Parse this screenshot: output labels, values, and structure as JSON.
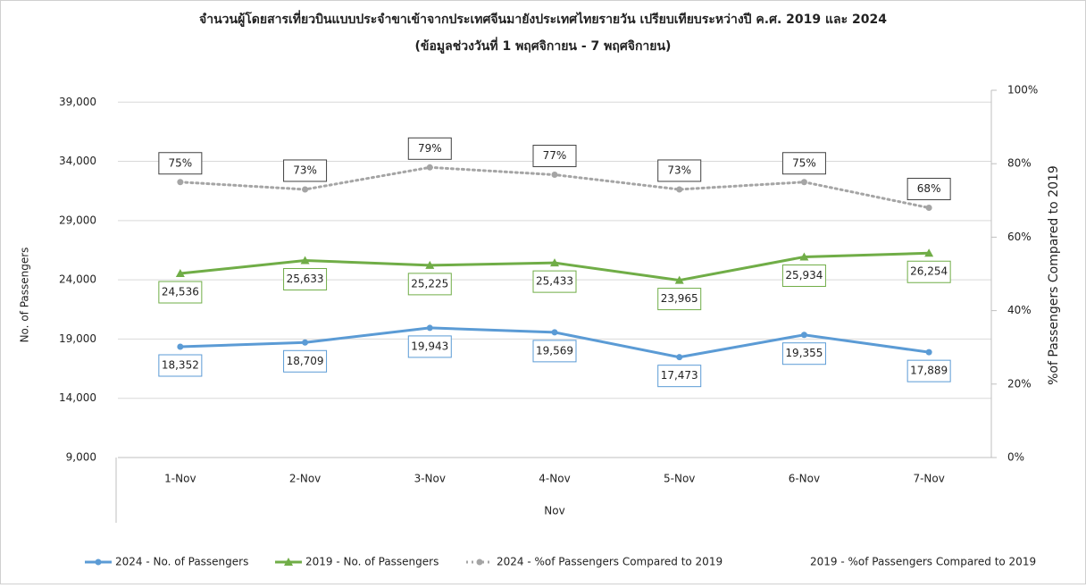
{
  "chart_data": {
    "type": "line",
    "title": "จำนวนผู้โดยสารเที่ยวบินแบบประจำขาเข้าจากประเทศจีนมายังประเทศไทยรายวัน เปรียบเทียบระหว่างปี ค.ศ. 2019 และ 2024",
    "subtitle": "(ข้อมูลช่วงวันที่ 1 พฤศจิกายน - 7 พฤศจิกายน)",
    "x_label": "Nov",
    "y_label": "No. of Passengers",
    "y2_label": "%of Passengers Compared to 2019",
    "categories": [
      "1-Nov",
      "2-Nov",
      "3-Nov",
      "4-Nov",
      "5-Nov",
      "6-Nov",
      "7-Nov"
    ],
    "ylim": [
      9000,
      40000
    ],
    "yticks": [
      {
        "value": 9000,
        "label": "9,000"
      },
      {
        "value": 14000,
        "label": "14,000"
      },
      {
        "value": 19000,
        "label": "19,000"
      },
      {
        "value": 24000,
        "label": "24,000"
      },
      {
        "value": 29000,
        "label": "29,000"
      },
      {
        "value": 34000,
        "label": "34,000"
      },
      {
        "value": 39000,
        "label": "39,000"
      }
    ],
    "y2lim": [
      0,
      100
    ],
    "y2ticks": [
      {
        "value": 0,
        "label": "0%"
      },
      {
        "value": 20,
        "label": "20%"
      },
      {
        "value": 40,
        "label": "40%"
      },
      {
        "value": 60,
        "label": "60%"
      },
      {
        "value": 80,
        "label": "80%"
      },
      {
        "value": 100,
        "label": "100%"
      }
    ],
    "grid": true,
    "legend": "bottom",
    "series": [
      {
        "name": "2024 - No. of Passengers",
        "color": "#5b9bd5",
        "marker": "circle",
        "values": [
          18352,
          18709,
          19943,
          19569,
          17473,
          19355,
          17889
        ],
        "value_labels": [
          "18,352",
          "18,709",
          "19,943",
          "19,569",
          "17,473",
          "19,355",
          "17,889"
        ]
      },
      {
        "name": "2019 - No. of Passengers",
        "color": "#70ad47",
        "marker": "triangle",
        "values": [
          24536,
          25633,
          25225,
          25433,
          23965,
          25934,
          26254
        ],
        "value_labels": [
          "24,536",
          "25,633",
          "25,225",
          "25,433",
          "23,965",
          "25,934",
          "26,254"
        ]
      },
      {
        "name": "2024 - %of Passengers Compared to 2019",
        "color": "#a5a5a5",
        "marker": "circle",
        "dashed": true,
        "axis": "y2",
        "values": [
          75,
          73,
          79,
          77,
          73,
          75,
          68
        ],
        "value_labels": [
          "75%",
          "73%",
          "79%",
          "77%",
          "73%",
          "75%",
          "68%"
        ]
      },
      {
        "name": "2019 - %of Passengers Compared to 2019",
        "axis": "y2",
        "values": [
          null,
          null,
          null,
          null,
          null,
          null,
          null
        ]
      }
    ]
  }
}
